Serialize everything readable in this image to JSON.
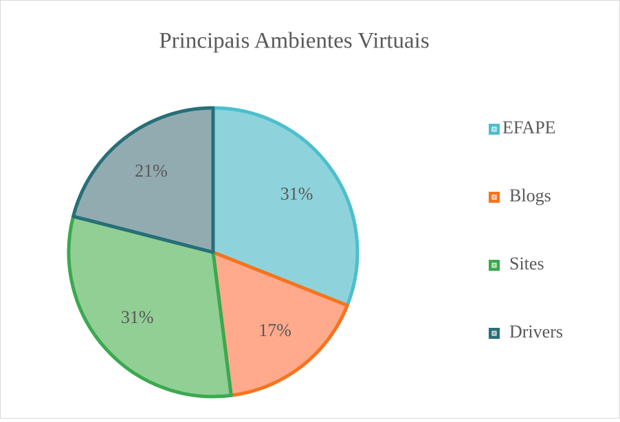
{
  "chart_data": {
    "type": "pie",
    "title": "Principais Ambientes Virtuais",
    "categories": [
      "EFAPE",
      "Blogs",
      "Sites",
      "Drivers"
    ],
    "values": [
      31,
      17,
      31,
      21
    ],
    "value_labels": [
      "31%",
      "17%",
      "31%",
      "21%"
    ],
    "colors": [
      "#4cbfcd",
      "#f7741c",
      "#3aa94f",
      "#276f79"
    ],
    "fills": [
      "#8ed3db",
      "#ffaa8c",
      "#92cf94",
      "#92abb1"
    ],
    "legend": "right"
  }
}
